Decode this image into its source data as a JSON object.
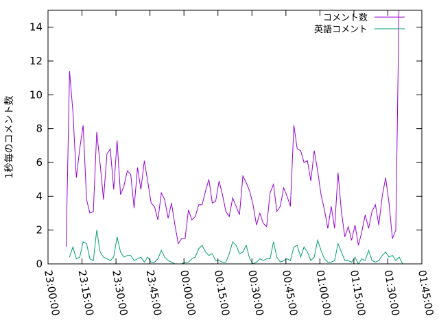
{
  "chart_data": {
    "type": "line",
    "xlabel": "",
    "ylabel": "1秒毎のコメント数",
    "xlim": [
      "23:00:00",
      "01:45:00"
    ],
    "ylim": [
      0,
      15
    ],
    "x_tick_labels": [
      "23:00:00",
      "23:15:00",
      "23:30:00",
      "23:45:00",
      "00:00:00",
      "00:15:00",
      "00:30:00",
      "00:45:00",
      "01:00:00",
      "01:15:00",
      "01:30:00",
      "01:45:00"
    ],
    "y_tick_labels": [
      "0",
      "2",
      "4",
      "6",
      "8",
      "10",
      "12",
      "14"
    ],
    "x_interval_seconds": 90,
    "x_start": "23:08:00",
    "legend_position": "top-right",
    "grid": false,
    "colors": {
      "series1": "#9400d3",
      "series2": "#009e73"
    },
    "series": [
      {
        "name": "コメント数",
        "values": [
          1.0,
          11.4,
          9.0,
          5.1,
          6.8,
          8.2,
          3.8,
          3.0,
          3.1,
          7.8,
          5.9,
          3.8,
          6.5,
          6.8,
          4.4,
          7.3,
          4.1,
          4.6,
          5.5,
          5.3,
          3.3,
          5.7,
          4.4,
          6.1,
          4.9,
          3.6,
          3.4,
          2.6,
          4.2,
          3.8,
          2.7,
          3.6,
          2.3,
          1.2,
          1.5,
          1.5,
          3.2,
          2.6,
          2.8,
          3.5,
          3.5,
          4.3,
          5.0,
          3.6,
          3.7,
          4.9,
          4.1,
          3.1,
          2.8,
          3.9,
          3.4,
          2.9,
          5.2,
          4.8,
          4.3,
          3.5,
          2.3,
          3.0,
          2.4,
          2.2,
          4.2,
          4.7,
          3.1,
          3.4,
          4.5,
          4.0,
          3.4,
          8.2,
          6.8,
          6.7,
          6.0,
          6.1,
          4.9,
          6.7,
          5.5,
          4.1,
          3.2,
          2.1,
          3.4,
          2.1,
          5.4,
          3.1,
          1.6,
          2.2,
          1.4,
          2.3,
          1.1,
          1.9,
          2.9,
          2.1,
          3.1,
          3.5,
          2.3,
          4.0,
          5.1,
          3.6,
          1.5,
          2.0,
          16.0
        ]
      },
      {
        "name": "英語コメント",
        "values": [
          null,
          0.4,
          1.0,
          0.3,
          0.4,
          1.3,
          1.2,
          0.3,
          0.2,
          2.0,
          0.7,
          0.4,
          0.3,
          0.2,
          0.4,
          1.6,
          0.7,
          0.4,
          0.5,
          0.5,
          0.2,
          0.3,
          0.4,
          0.1,
          0.4,
          0.1,
          0.1,
          0.3,
          0.8,
          0.4,
          0.2,
          0.1,
          0.0,
          0.0,
          0.0,
          0.1,
          0.1,
          0.3,
          0.4,
          0.9,
          1.1,
          0.7,
          0.5,
          0.6,
          0.2,
          0.2,
          0.1,
          0.1,
          0.6,
          1.3,
          1.1,
          0.6,
          0.7,
          1.1,
          0.3,
          0.0,
          0.1,
          0.3,
          0.2,
          0.3,
          0.3,
          1.3,
          0.4,
          0.1,
          0.2,
          0.3,
          0.2,
          1.0,
          1.1,
          0.4,
          1.0,
          0.7,
          0.2,
          0.4,
          1.4,
          0.8,
          0.3,
          0.1,
          0.1,
          0.2,
          1.2,
          0.7,
          0.2,
          0.2,
          0.1,
          0.4,
          0.0,
          0.3,
          0.2,
          0.8,
          0.2,
          0.1,
          0.2,
          0.5,
          0.7,
          0.4,
          0.5,
          0.2,
          0.4,
          0.0
        ]
      }
    ]
  }
}
